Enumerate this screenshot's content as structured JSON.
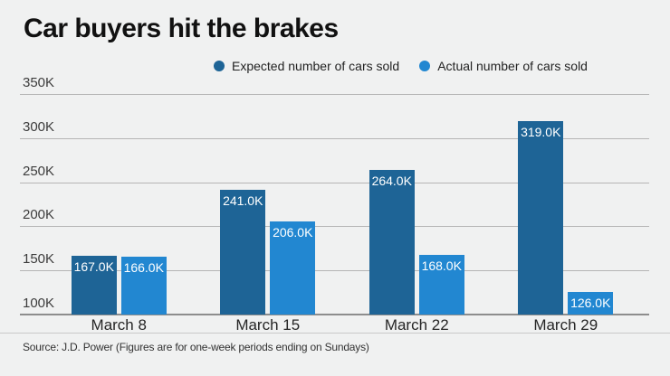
{
  "header": {
    "title": "Car buyers hit the brakes"
  },
  "source": {
    "text": "Source: J.D. Power (Figures are for one-week periods ending on Sundays)"
  },
  "colors": {
    "background": "#f0f1f1",
    "expected_blue": "#1e6496",
    "actual_blue": "#2287d1",
    "gridline": "#b5b5b5",
    "baseline": "#8d8d8d"
  },
  "chart_data": {
    "type": "bar",
    "title": "Car buyers hit the brakes",
    "categories": [
      "March 8",
      "March 15",
      "March 22",
      "March 29"
    ],
    "series": [
      {
        "name": "Expected number of cars sold",
        "color": "#1e6496",
        "values": [
          167000,
          241000,
          264000,
          319000
        ],
        "labels": [
          "167.0K",
          "241.0K",
          "264.0K",
          "319.0K"
        ]
      },
      {
        "name": "Actual number of cars sold",
        "color": "#2287d1",
        "values": [
          166000,
          206000,
          168000,
          126000
        ],
        "labels": [
          "166.0K",
          "206.0K",
          "168.0K",
          "126.0K"
        ]
      }
    ],
    "y_axis": {
      "min": 100000,
      "max": 350000,
      "tick_step": 50000,
      "tick_labels": [
        "350K",
        "300K",
        "250K",
        "200K",
        "150K",
        "100K"
      ]
    },
    "grid": true,
    "legend_position": "top",
    "value_labels": "inside-top",
    "xlabel": "",
    "ylabel": ""
  }
}
